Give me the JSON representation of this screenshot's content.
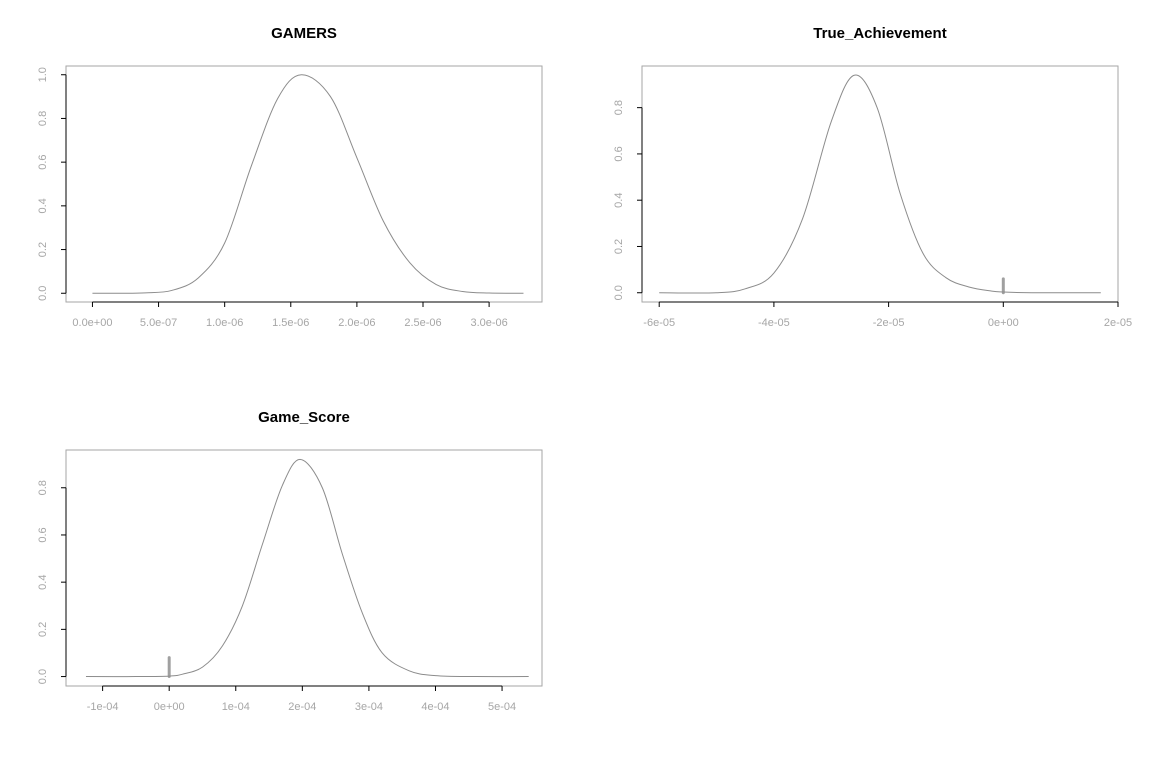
{
  "chart_data": [
    {
      "type": "line",
      "title": "GAMERS",
      "xlabel": "",
      "ylabel": "",
      "xlim": [
        -2e-07,
        3.4e-06
      ],
      "ylim": [
        -0.04,
        1.04
      ],
      "x_ticks": [
        0,
        5e-07,
        1e-06,
        1.5e-06,
        2e-06,
        2.5e-06,
        3e-06
      ],
      "x_tick_labels": [
        "0.0e+00",
        "5.0e-07",
        "1.0e-06",
        "1.5e-06",
        "2.0e-06",
        "2.5e-06",
        "3.0e-06"
      ],
      "y_ticks": [
        0,
        0.2,
        0.4,
        0.6,
        0.8,
        1.0
      ],
      "y_tick_labels": [
        "0.0",
        "0.2",
        "0.4",
        "0.6",
        "0.8",
        "1.0"
      ],
      "series": [
        {
          "x": [
            0,
            2e-07,
            4e-07,
            6e-07,
            8e-07,
            1e-06,
            1.2e-06,
            1.4e-06,
            1.58e-06,
            1.8e-06,
            2e-06,
            2.2e-06,
            2.4e-06,
            2.6e-06,
            2.8e-06,
            3e-06,
            3.26e-06
          ],
          "y": [
            0.0,
            0.0,
            0.002,
            0.013,
            0.07,
            0.23,
            0.58,
            0.89,
            1.0,
            0.9,
            0.62,
            0.33,
            0.14,
            0.04,
            0.008,
            0.001,
            0.0
          ]
        }
      ],
      "spikes": [],
      "grid": false,
      "legend": "none"
    },
    {
      "type": "line",
      "title": "True_Achievement",
      "xlabel": "",
      "ylabel": "",
      "xlim": [
        -6.3e-05,
        2e-05
      ],
      "ylim": [
        -0.04,
        0.98
      ],
      "x_ticks": [
        -6e-05,
        -4e-05,
        -2e-05,
        0,
        2e-05
      ],
      "x_tick_labels": [
        "-6e-05",
        "-4e-05",
        "-2e-05",
        "0e+00",
        "2e-05"
      ],
      "y_ticks": [
        0,
        0.2,
        0.4,
        0.6,
        0.8
      ],
      "y_tick_labels": [
        "0.0",
        "0.2",
        "0.4",
        "0.6",
        "0.8"
      ],
      "series": [
        {
          "x": [
            -6e-05,
            -5e-05,
            -4.5e-05,
            -4e-05,
            -3.5e-05,
            -3e-05,
            -2.6e-05,
            -2.2e-05,
            -1.8e-05,
            -1.4e-05,
            -1e-05,
            -6e-06,
            -2e-06,
            0,
            5e-06,
            1e-05,
            1.7e-05
          ],
          "y": [
            0.0,
            0.0,
            0.017,
            0.085,
            0.32,
            0.74,
            0.94,
            0.8,
            0.43,
            0.17,
            0.065,
            0.025,
            0.007,
            0.003,
            0.0,
            0.0,
            0.0
          ]
        }
      ],
      "spikes": [
        {
          "x": 0,
          "y": 0.06
        }
      ],
      "grid": false,
      "legend": "none"
    },
    {
      "type": "line",
      "title": "Game_Score",
      "xlabel": "",
      "ylabel": "",
      "xlim": [
        -0.000155,
        0.00056
      ],
      "ylim": [
        -0.04,
        0.96
      ],
      "x_ticks": [
        -0.0001,
        0,
        0.0001,
        0.0002,
        0.0003,
        0.0004,
        0.0005
      ],
      "x_tick_labels": [
        "-1e-04",
        "0e+00",
        "1e-04",
        "2e-04",
        "3e-04",
        "4e-04",
        "5e-04"
      ],
      "y_ticks": [
        0,
        0.2,
        0.4,
        0.6,
        0.8
      ],
      "y_tick_labels": [
        "0.0",
        "0.2",
        "0.4",
        "0.6",
        "0.8"
      ],
      "series": [
        {
          "x": [
            -0.000125,
            -5e-05,
            0,
            2e-05,
            5e-05,
            8e-05,
            0.00011,
            0.00014,
            0.00017,
            0.000197,
            0.00023,
            0.00026,
            0.00029,
            0.00032,
            0.00036,
            0.0004,
            0.00046,
            0.00054
          ],
          "y": [
            0.0,
            0.0,
            0.002,
            0.01,
            0.04,
            0.13,
            0.3,
            0.56,
            0.81,
            0.92,
            0.8,
            0.52,
            0.27,
            0.1,
            0.025,
            0.004,
            0.0,
            0.0
          ]
        }
      ],
      "spikes": [
        {
          "x": 0,
          "y": 0.08
        }
      ],
      "grid": false,
      "legend": "none"
    }
  ]
}
